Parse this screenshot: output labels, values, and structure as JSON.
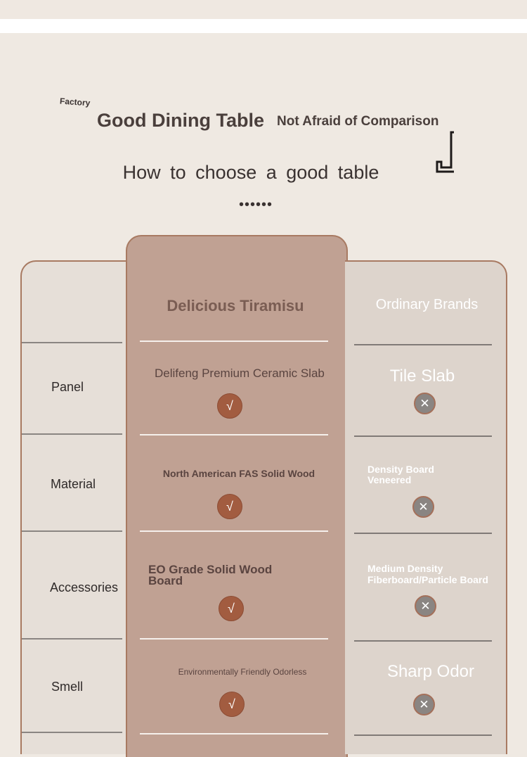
{
  "header": {
    "factory_label": "Factory",
    "title": "Good Dining Table",
    "subtitle": "Not Afraid of Comparison",
    "howto": "How to choose a good table",
    "dots": "••••••"
  },
  "comparison": {
    "our_brand": "Delicious Tiramisu",
    "other_brand": "Ordinary Brands",
    "check_symbol": "√",
    "cross_symbol": "✕",
    "rows": [
      {
        "label": "Panel",
        "ours": "Delifeng Premium Ceramic Slab",
        "theirs": "Tile Slab"
      },
      {
        "label": "Material",
        "ours": "North American FAS Solid Wood",
        "theirs": "Density Board Veneered"
      },
      {
        "label": "Accessories",
        "ours": "EO Grade Solid Wood Board",
        "theirs": "Medium Density Fiberboard/Particle Board"
      },
      {
        "label": "Smell",
        "ours": "Environmentally Friendly Odorless",
        "theirs": "Sharp Odor"
      }
    ]
  },
  "colors": {
    "background": "#efe9e2",
    "highlight_column": "#c0a193",
    "accent": "#a25c40",
    "border": "#a87a62"
  }
}
